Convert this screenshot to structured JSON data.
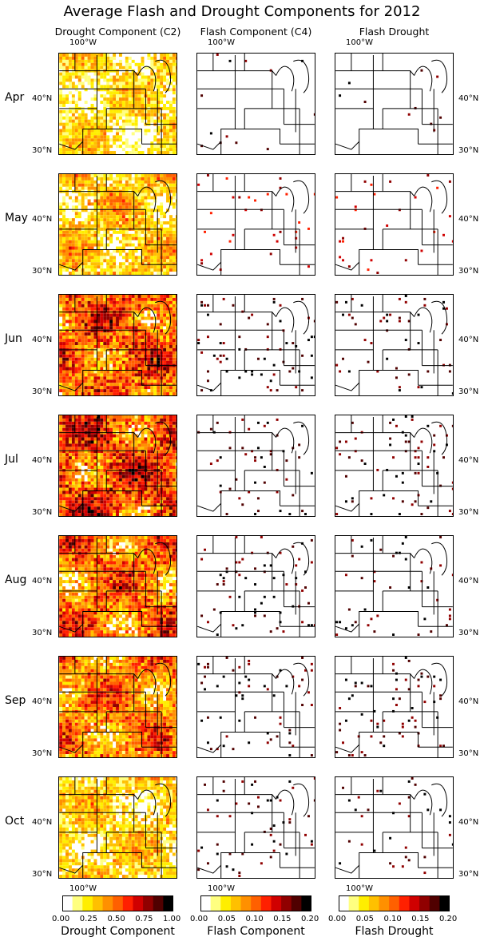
{
  "title": "Average Flash and Drought Components for 2012",
  "columns": [
    {
      "id": "drought",
      "title": "Drought Component (C2)",
      "colorbar_label": "Drought Component",
      "ticks": [
        "0.00",
        "0.25",
        "0.50",
        "0.75",
        "1.00"
      ]
    },
    {
      "id": "flash",
      "title": "Flash Component (C4)",
      "colorbar_label": "Flash Component",
      "ticks": [
        "0.00",
        "0.05",
        "0.10",
        "0.15",
        "0.20"
      ]
    },
    {
      "id": "fd",
      "title": "Flash Drought",
      "colorbar_label": "Flash Drought",
      "ticks": [
        "0.00",
        "0.05",
        "0.10",
        "0.15",
        "0.20"
      ]
    }
  ],
  "rows": [
    "Apr",
    "May",
    "Jun",
    "Jul",
    "Aug",
    "Sep",
    "Oct"
  ],
  "lon_label": "100°W",
  "lat_labels": {
    "upper": "40°N",
    "lower": "30°N"
  },
  "colormap": [
    "#ffffff",
    "#ffff80",
    "#ffee00",
    "#ffc000",
    "#ff9000",
    "#ff6000",
    "#ff2000",
    "#d00000",
    "#900000",
    "#500000",
    "#000000"
  ],
  "intensity": {
    "drought": [
      0.45,
      0.55,
      0.85,
      0.9,
      0.8,
      0.75,
      0.5
    ],
    "flash": [
      0.08,
      0.25,
      0.4,
      0.45,
      0.45,
      0.45,
      0.3
    ],
    "fd": [
      0.08,
      0.25,
      0.4,
      0.45,
      0.4,
      0.4,
      0.25
    ]
  }
}
